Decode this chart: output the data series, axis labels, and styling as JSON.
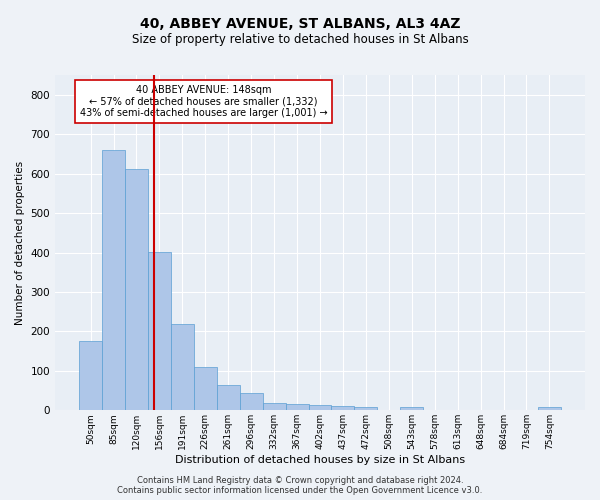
{
  "title": "40, ABBEY AVENUE, ST ALBANS, AL3 4AZ",
  "subtitle": "Size of property relative to detached houses in St Albans",
  "xlabel": "Distribution of detached houses by size in St Albans",
  "ylabel": "Number of detached properties",
  "categories": [
    "50sqm",
    "85sqm",
    "120sqm",
    "156sqm",
    "191sqm",
    "226sqm",
    "261sqm",
    "296sqm",
    "332sqm",
    "367sqm",
    "402sqm",
    "437sqm",
    "472sqm",
    "508sqm",
    "543sqm",
    "578sqm",
    "613sqm",
    "648sqm",
    "684sqm",
    "719sqm",
    "754sqm"
  ],
  "values": [
    175,
    660,
    612,
    401,
    218,
    110,
    65,
    44,
    18,
    17,
    14,
    11,
    8,
    0,
    8,
    0,
    0,
    0,
    0,
    0,
    8
  ],
  "bar_color": "#aec6e8",
  "bar_edge_color": "#5a9fd4",
  "bar_width": 1.0,
  "vline_color": "#cc0000",
  "annotation_text": "40 ABBEY AVENUE: 148sqm\n← 57% of detached houses are smaller (1,332)\n43% of semi-detached houses are larger (1,001) →",
  "annotation_box_color": "#ffffff",
  "annotation_box_edge": "#cc0000",
  "ylim": [
    0,
    850
  ],
  "yticks": [
    0,
    100,
    200,
    300,
    400,
    500,
    600,
    700,
    800
  ],
  "background_color": "#e8eef5",
  "fig_background_color": "#eef2f7",
  "grid_color": "#ffffff",
  "footer_line1": "Contains HM Land Registry data © Crown copyright and database right 2024.",
  "footer_line2": "Contains public sector information licensed under the Open Government Licence v3.0."
}
